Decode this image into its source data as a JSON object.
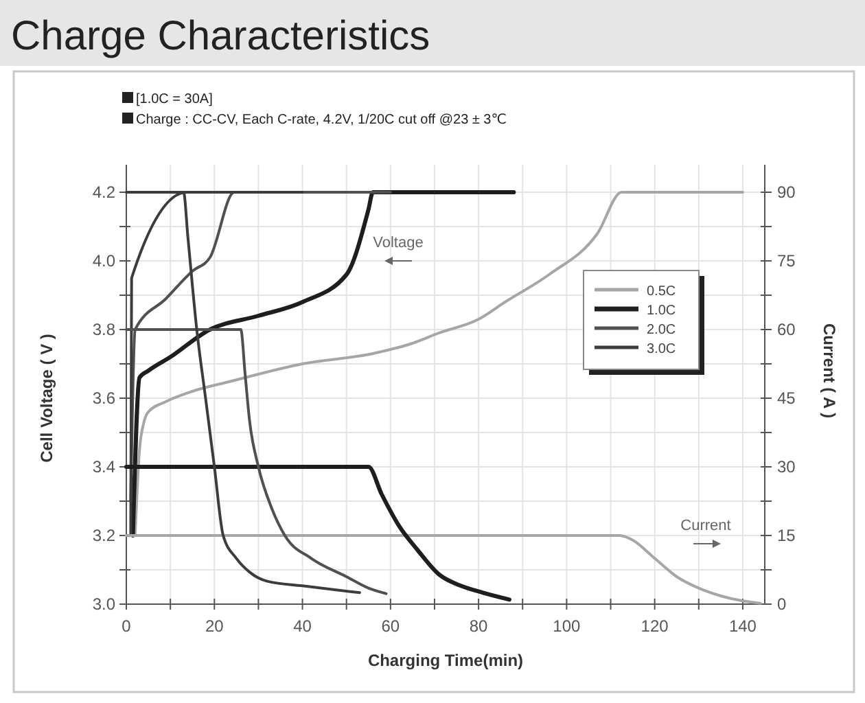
{
  "chart_data": {
    "type": "line",
    "title": "Charge Characteristics",
    "subtitle": "[1.0C = 30A]",
    "annotations": [
      "Charge : CC-CV, Each C-rate, 4.2V, 1/20C cut off @23 ± 3℃",
      "Voltage",
      "Current"
    ],
    "xlabel": "Charging Time(min)",
    "ylabel": "Cell Voltage ( V )",
    "y2label": "Current ( A )",
    "xlim": [
      0,
      145
    ],
    "ylim": [
      3.0,
      4.28
    ],
    "y2lim": [
      0,
      96
    ],
    "xticks": [
      0,
      {
        "value": 10,
        "label": null
      },
      20,
      {
        "value": 30,
        "label": null
      },
      40,
      {
        "value": 50,
        "label": null
      },
      60,
      {
        "value": 70,
        "label": null
      },
      80,
      {
        "value": 90,
        "label": null
      },
      100,
      {
        "value": 110,
        "label": null
      },
      120,
      {
        "value": 130,
        "label": null
      },
      140
    ],
    "yticks": [
      {
        "value": 3.0,
        "label": "3.0"
      },
      {
        "value": 3.1,
        "label": null
      },
      3.2,
      {
        "value": 3.3,
        "label": null
      },
      3.4,
      {
        "value": 3.5,
        "label": null
      },
      3.6,
      {
        "value": 3.7,
        "label": null
      },
      3.8,
      {
        "value": 3.9,
        "label": null
      },
      {
        "value": 4.0,
        "label": "4.0"
      },
      {
        "value": 4.1,
        "label": null
      },
      4.2
    ],
    "y2ticks": [
      0,
      {
        "value": 7.5,
        "label": null
      },
      15,
      {
        "value": 22.5,
        "label": null
      },
      30,
      {
        "value": 37.5,
        "label": null
      },
      45,
      {
        "value": 52.5,
        "label": null
      },
      60,
      {
        "value": 67.5,
        "label": null
      },
      75,
      {
        "value": 82.5,
        "label": null
      },
      90
    ],
    "grid": true,
    "legend": "right",
    "line_style": "solid",
    "series": [
      {
        "name": "0.5C",
        "color": "#a6a6a6",
        "x": [
          2,
          3,
          4,
          5,
          9,
          15,
          24,
          40,
          56,
          65,
          71,
          80,
          86,
          96,
          107,
          112.5,
          140
        ],
        "values": [
          3.2,
          3.45,
          3.53,
          3.56,
          3.59,
          3.62,
          3.65,
          3.7,
          3.73,
          3.76,
          3.79,
          3.83,
          3.88,
          3.96,
          4.08,
          4.2,
          4.2
        ]
      },
      {
        "name": "1.0C",
        "color": "#1e1e1e",
        "x": [
          1.5,
          3,
          5,
          10,
          19,
          30,
          40,
          50,
          55,
          56,
          88
        ],
        "values": [
          3.2,
          3.66,
          3.68,
          3.72,
          3.8,
          3.84,
          3.88,
          3.96,
          4.15,
          4.2,
          4.2
        ]
      },
      {
        "name": "2.0C",
        "color": "#505050",
        "x": [
          1,
          2,
          9,
          15,
          19,
          24.5,
          60
        ],
        "values": [
          3.3,
          3.8,
          3.89,
          3.97,
          4.01,
          4.2,
          4.2
        ]
      },
      {
        "name": "3.0C",
        "color": "#3c3c3c",
        "x": [
          1,
          1.2,
          13.7,
          40
        ],
        "values": [
          3.2,
          3.95,
          4.2,
          4.2
        ]
      },
      {
        "color": "#a6a6a6",
        "axis": "y2",
        "x": [
          0,
          112,
          115,
          120,
          125,
          130,
          135,
          140,
          144
        ],
        "values": [
          15,
          15,
          14,
          10,
          6,
          3.5,
          1.8,
          0.7,
          0.2
        ]
      },
      {
        "color": "#1e1e1e",
        "axis": "y2",
        "x": [
          0,
          55,
          58,
          62,
          66,
          71,
          76,
          81,
          87
        ],
        "values": [
          30,
          30,
          24,
          17,
          12,
          6.5,
          4,
          2.5,
          1
        ]
      },
      {
        "color": "#505050",
        "axis": "y2",
        "x": [
          0,
          26,
          27,
          28,
          30,
          33,
          36,
          42,
          50,
          55,
          59
        ],
        "values": [
          60,
          60,
          50,
          40,
          30,
          21,
          15,
          10,
          6,
          3.5,
          2.3
        ]
      },
      {
        "color": "#3c3c3c",
        "axis": "y2",
        "x": [
          0,
          13,
          14,
          16,
          18,
          20,
          22,
          25,
          28,
          32,
          40,
          53
        ],
        "values": [
          90,
          90,
          80,
          60,
          45,
          30,
          15,
          10,
          7,
          5,
          4,
          2.5
        ]
      }
    ]
  }
}
